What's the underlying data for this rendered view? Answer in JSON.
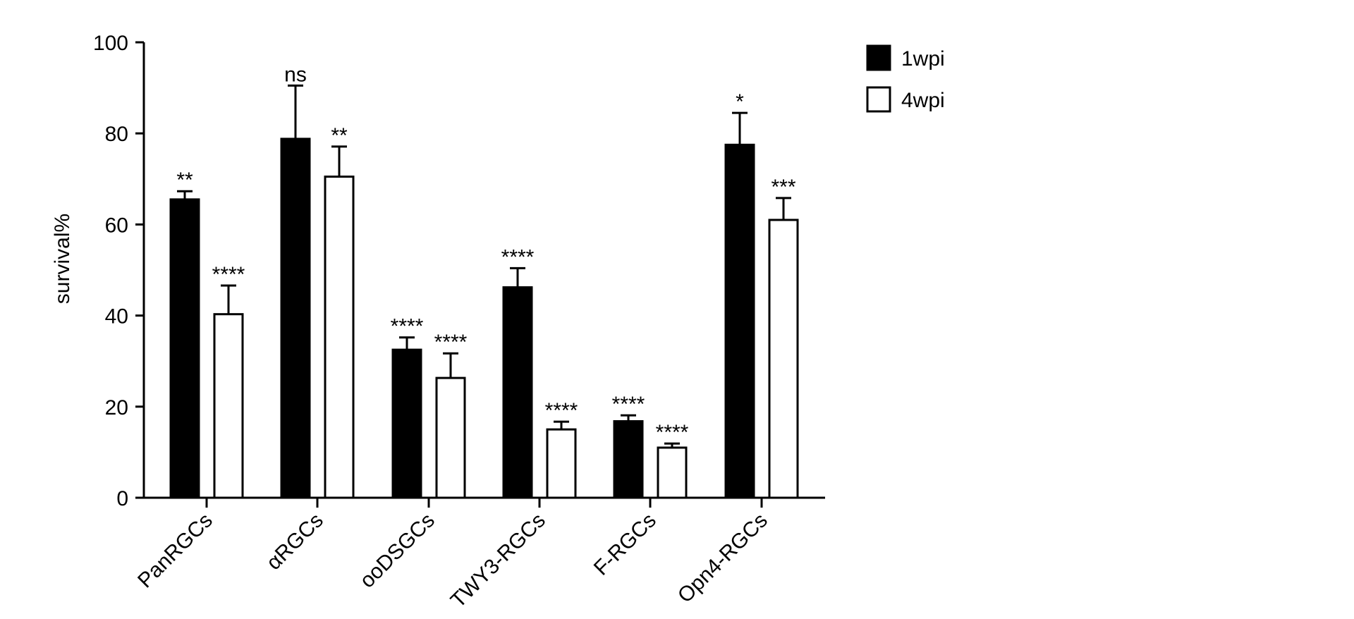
{
  "chart_data": {
    "type": "bar",
    "categories": [
      "PanRGCs",
      "αRGCs",
      "ooDSGCs",
      "TWY3-RGCs",
      "F-RGCs",
      "Opn4-RGCs"
    ],
    "series": [
      {
        "name": "1wpi",
        "color": "#000000",
        "values": [
          65.5,
          78.8,
          32.5,
          46.2,
          16.8,
          77.5
        ],
        "errors": [
          1.8,
          11.7,
          2.7,
          4.2,
          1.3,
          7.0
        ],
        "significance": [
          "**",
          "ns",
          "****",
          "****",
          "****",
          "*"
        ]
      },
      {
        "name": "4wpi",
        "color": "#ffffff",
        "values": [
          40.3,
          70.5,
          26.3,
          15.0,
          11.0,
          61.0
        ],
        "errors": [
          6.3,
          6.6,
          5.4,
          1.7,
          0.9,
          4.8
        ],
        "significance": [
          "****",
          "**",
          "****",
          "****",
          "****",
          "***"
        ]
      }
    ],
    "ylabel": "survival%",
    "xlabel": "",
    "ylim": [
      0,
      100
    ],
    "yticks": [
      0,
      20,
      40,
      60,
      80,
      100
    ],
    "legend_position": "top-right",
    "grid": false
  }
}
